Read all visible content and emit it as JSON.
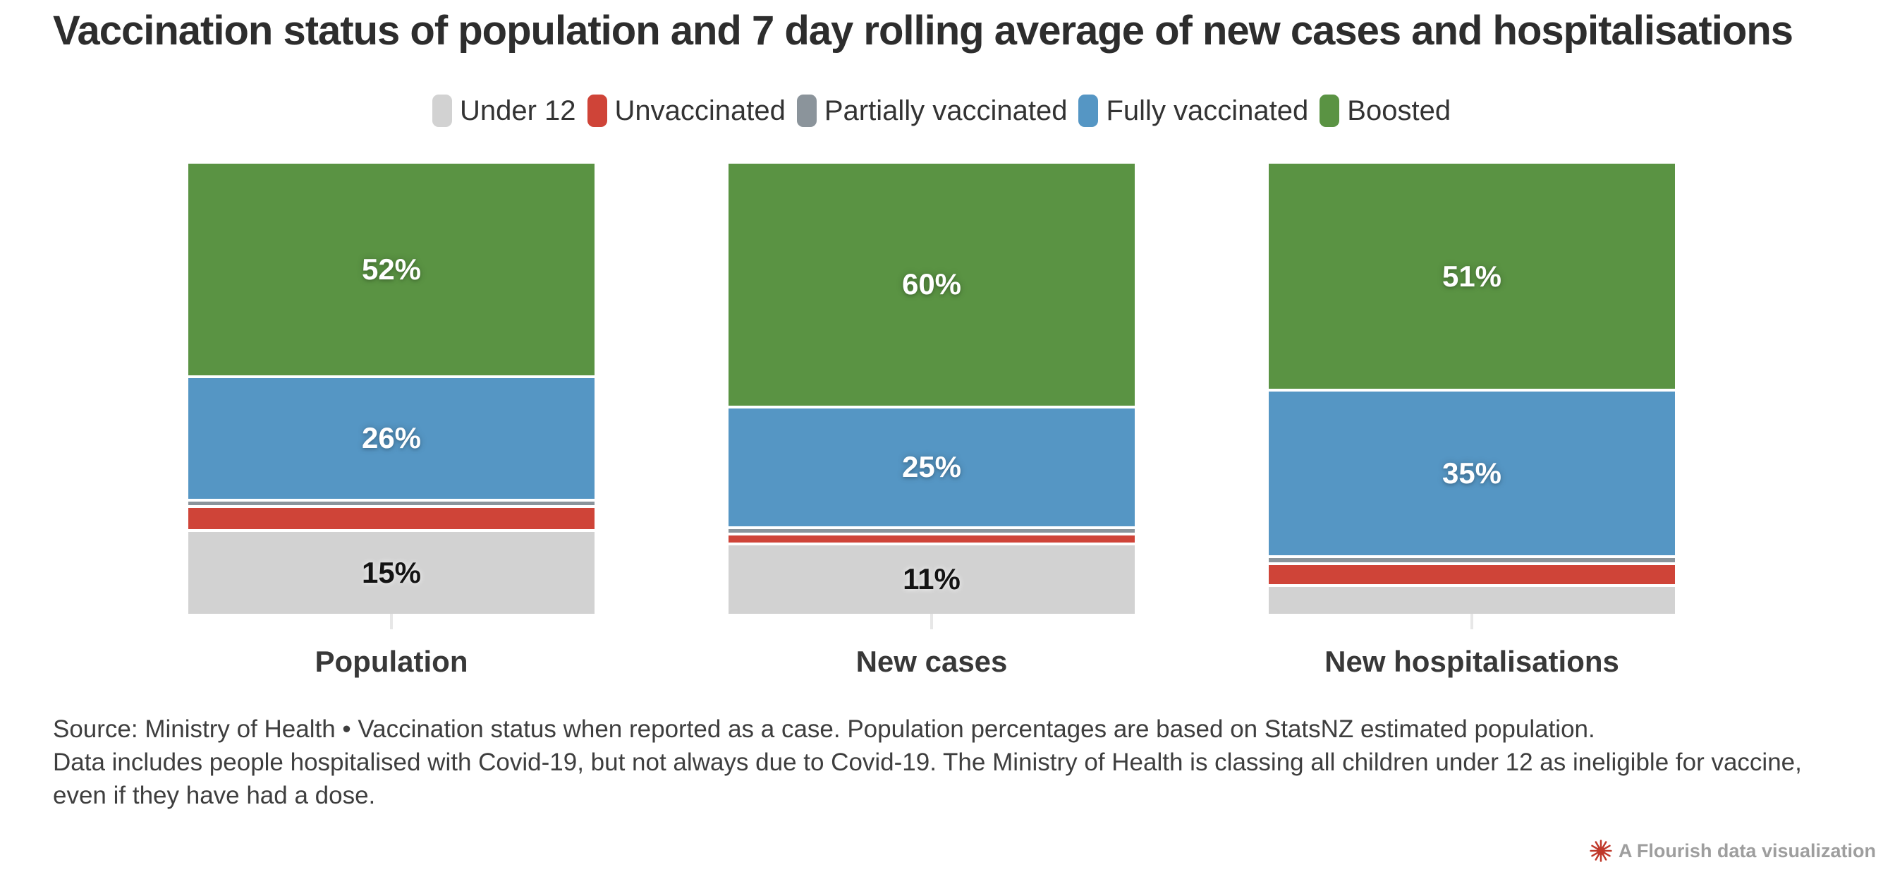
{
  "title": "Vaccination status of population and 7 day rolling average of new cases and hospitalisations",
  "chart_data": {
    "type": "bar",
    "stacked": true,
    "orientation": "vertical",
    "value_unit": "%",
    "ylim": [
      0,
      100
    ],
    "grid": false,
    "legend_position": "top-center",
    "categories": [
      "Population",
      "New cases",
      "New hospitalisations"
    ],
    "series": [
      {
        "name": "Under 12",
        "color": "#d2d2d2",
        "label_text": "dark",
        "values": [
          15,
          11,
          7
        ],
        "data_labels": [
          "15%",
          "11%",
          ""
        ]
      },
      {
        "name": "Unvaccinated",
        "color": "#cf4438",
        "label_text": "light",
        "values": [
          6,
          2,
          5
        ],
        "data_labels": [
          "",
          "",
          ""
        ]
      },
      {
        "name": "Partially vaccinated",
        "color": "#8b949b",
        "label_text": "light",
        "values": [
          1,
          1,
          1
        ],
        "data_labels": [
          "",
          "",
          ""
        ]
      },
      {
        "name": "Fully vaccinated",
        "color": "#5596c4",
        "label_text": "light",
        "values": [
          26,
          25,
          35
        ],
        "data_labels": [
          "26%",
          "25%",
          "35%"
        ]
      },
      {
        "name": "Boosted",
        "color": "#5a9343",
        "label_text": "light",
        "values": [
          52,
          60,
          51
        ],
        "data_labels": [
          "52%",
          "60%",
          "51%"
        ]
      }
    ]
  },
  "footer": {
    "line1": "Source: Ministry of Health • Vaccination status when reported as a case. Population percentages are based on StatsNZ estimated population.",
    "line2": "Data includes people hospitalised with Covid-19, but not always due to Covid-19. The Ministry of Health is classing all children under 12 as ineligible for vaccine,",
    "line3": "even if they have had a dose."
  },
  "attribution": {
    "text": "A Flourish data visualization",
    "icon_color": "#c0392b",
    "text_color": "#9e9e9e"
  }
}
